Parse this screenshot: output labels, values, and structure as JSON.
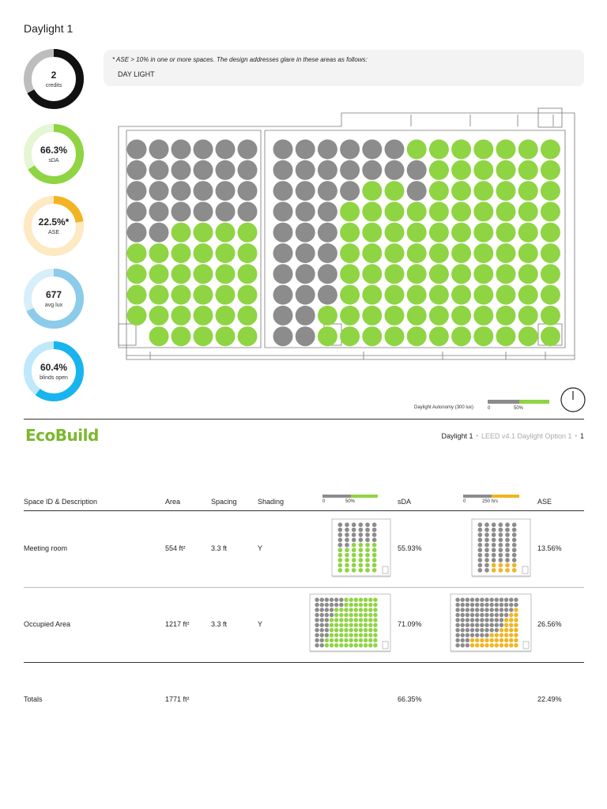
{
  "page": {
    "title": "Daylight 1"
  },
  "metrics": [
    {
      "value": "2",
      "label": "credits",
      "fraction": 0.67,
      "color": "#111111",
      "track": "#bdbdbd"
    },
    {
      "value": "66.3%",
      "label": "sDA",
      "fraction": 0.663,
      "color": "#8fd443",
      "track": "#e4f6d3"
    },
    {
      "value": "22.5%*",
      "label": "ASE",
      "fraction": 0.225,
      "color": "#f2b422",
      "track": "#fde9c2"
    },
    {
      "value": "677",
      "label": "avg lux",
      "fraction": 0.68,
      "color": "#8ccbe9",
      "track": "#d8eef9"
    },
    {
      "value": "60.4%",
      "label": "blinds open",
      "fraction": 0.604,
      "color": "#18b4ee",
      "track": "#bfe8fb"
    }
  ],
  "note": {
    "line": "* ASE > 10% in one or more spaces. The design addresses glare in these areas as follows:",
    "sub": "DAY LIGHT"
  },
  "legend": {
    "label": "Daylight Autonomy (300 lux)",
    "tick0": "0",
    "tick50": "50%",
    "gray": "#8c8c8c",
    "green": "#8fd443"
  },
  "header": {
    "logo": "EcoBuild",
    "crumb_page": "Daylight 1",
    "crumb_standard": "LEED v4.1 Daylight Option 1",
    "crumb_number": "1"
  },
  "table": {
    "columns": {
      "space": "Space ID & Description",
      "area": "Area",
      "spacing": "Spacing",
      "shading": "Shading",
      "sda": "sDA",
      "ase": "ASE"
    },
    "sda_scale": {
      "tick0": "0",
      "tick50": "50%"
    },
    "ase_scale": {
      "tick0": "0",
      "tick250": "250 hrs"
    },
    "rows": [
      {
        "space": "Meeting room",
        "area": "554 ft²",
        "spacing": "3.3 ft",
        "shading": "Y",
        "sda": "55.93%",
        "ase": "13.56%"
      },
      {
        "space": "Occupied Area",
        "area": "1217 ft²",
        "spacing": "3.3 ft",
        "shading": "Y",
        "sda": "71.09%",
        "ase": "26.56%"
      }
    ],
    "totals": {
      "label": "Totals",
      "area": "1771 ft²",
      "sda": "66.35%",
      "ase": "22.49%"
    }
  }
}
